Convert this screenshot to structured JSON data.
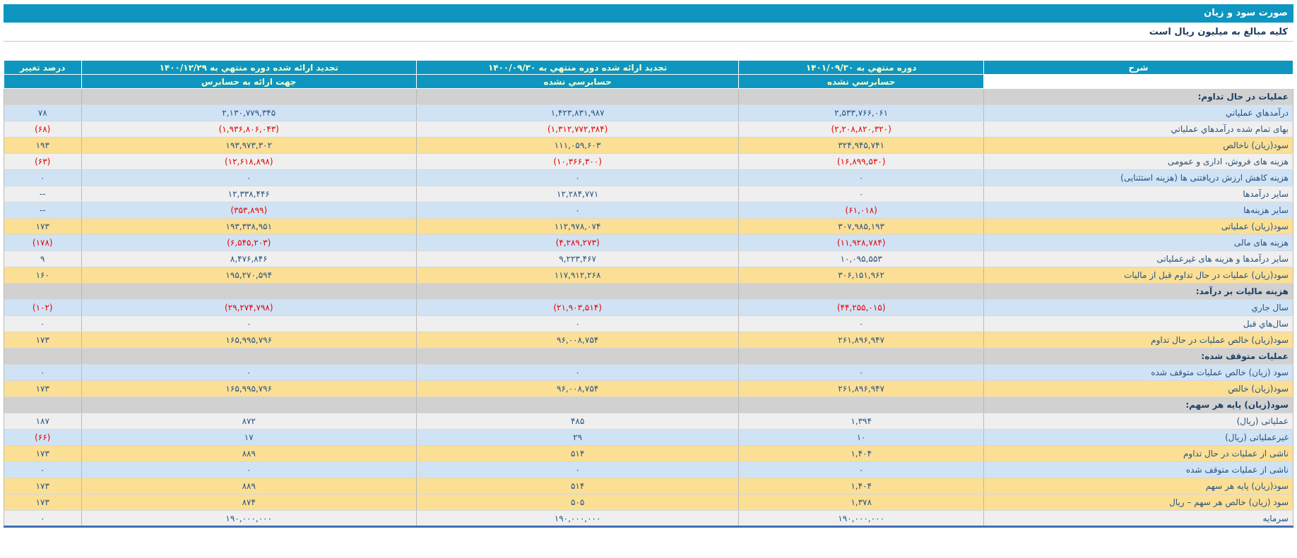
{
  "title_bar": {
    "text": "صورت سود و زیان"
  },
  "subtitle_bar": {
    "text": "کلیه مبالغ به میلیون ریال است"
  },
  "table": {
    "columns": {
      "description": "شرح",
      "col_1401": {
        "title": "دوره منتهي به ۱۴۰۱/۰۹/۳۰",
        "subtitle": "حسابرسي نشده"
      },
      "col_1400_09": {
        "title": "تجدید ارائه شده دوره منتهي به ۱۴۰۰/۰۹/۳۰",
        "subtitle": "حسابرسي نشده"
      },
      "col_1400_12": {
        "title": "تجدید ارائه شده دوره منتهي به ۱۴۰۰/۱۲/۲۹",
        "subtitle": "جهت ارائه به حسابرس"
      },
      "pct_change": "درصد تغییر"
    },
    "rows": [
      {
        "type": "section",
        "label": "عملیات در حال تداوم:"
      },
      {
        "type": "data",
        "tone": "blue",
        "label": "درآمدهاي عملیاتي",
        "v1401": "۲,۵۳۳,۷۶۶,۰۶۱",
        "v1400_09": "۱,۴۲۳,۸۳۱,۹۸۷",
        "v1400_12": "۲,۱۳۰,۷۷۹,۳۴۵",
        "pct": "۷۸"
      },
      {
        "type": "data",
        "tone": "light",
        "label": "بهای تمام شده درآمدهاي عملیاتي",
        "v1401": "(۲,۲۰۸,۸۲۰,۳۲۰)",
        "v1400_09": "(۱,۳۱۲,۷۷۲,۳۸۴)",
        "v1400_12": "(۱,۹۳۶,۸۰۶,۰۴۳)",
        "pct": "(۶۸)"
      },
      {
        "type": "data",
        "tone": "yellow",
        "label": "سود(زیان) ناخالص",
        "v1401": "۳۲۴,۹۴۵,۷۴۱",
        "v1400_09": "۱۱۱,۰۵۹,۶۰۳",
        "v1400_12": "۱۹۳,۹۷۳,۳۰۲",
        "pct": "۱۹۳"
      },
      {
        "type": "data",
        "tone": "light",
        "label": "هزینه های فروش، اداری و عمومی",
        "v1401": "(۱۶,۸۹۹,۵۳۰)",
        "v1400_09": "(۱۰,۳۶۶,۳۰۰)",
        "v1400_12": "(۱۲,۶۱۸,۸۹۸)",
        "pct": "(۶۳)"
      },
      {
        "type": "data",
        "tone": "blue",
        "label": "هزینه کاهش ارزش دریافتنی ها (هزینه استثنایی)",
        "v1401": "۰",
        "v1400_09": "۰",
        "v1400_12": "۰",
        "pct": "۰"
      },
      {
        "type": "data",
        "tone": "light",
        "label": "سایر درآمدها",
        "v1401": "۰",
        "v1400_09": "۱۲,۲۸۴,۷۷۱",
        "v1400_12": "۱۲,۳۳۸,۴۴۶",
        "pct": "--"
      },
      {
        "type": "data",
        "tone": "blue",
        "label": "سایر هزینه‌ها",
        "v1401": "(۶۱,۰۱۸)",
        "v1400_09": "۰",
        "v1400_12": "(۳۵۳,۸۹۹)",
        "pct": "--"
      },
      {
        "type": "data",
        "tone": "yellow",
        "label": "سود(زیان) عملیاتی",
        "v1401": "۳۰۷,۹۸۵,۱۹۳",
        "v1400_09": "۱۱۲,۹۷۸,۰۷۴",
        "v1400_12": "۱۹۳,۳۳۸,۹۵۱",
        "pct": "۱۷۳"
      },
      {
        "type": "data",
        "tone": "blue",
        "label": "هزینه های مالی",
        "v1401": "(۱۱,۹۲۸,۷۸۴)",
        "v1400_09": "(۴,۲۸۹,۲۷۳)",
        "v1400_12": "(۶,۵۴۵,۲۰۳)",
        "pct": "(۱۷۸)"
      },
      {
        "type": "data",
        "tone": "light",
        "label": "سایر درآمدها و هزینه های غیرعملیاتی",
        "v1401": "۱۰,۰۹۵,۵۵۳",
        "v1400_09": "۹,۲۲۳,۴۶۷",
        "v1400_12": "۸,۴۷۶,۸۴۶",
        "pct": "۹"
      },
      {
        "type": "data",
        "tone": "yellow",
        "label": "سود(زیان) عملیات در حال تداوم قبل از مالیات",
        "v1401": "۳۰۶,۱۵۱,۹۶۲",
        "v1400_09": "۱۱۷,۹۱۲,۲۶۸",
        "v1400_12": "۱۹۵,۲۷۰,۵۹۴",
        "pct": "۱۶۰"
      },
      {
        "type": "section",
        "label": "هزینه مالیات بر درآمد:"
      },
      {
        "type": "data",
        "tone": "blue",
        "label": "سال جاري",
        "v1401": "(۴۴,۲۵۵,۰۱۵)",
        "v1400_09": "(۲۱,۹۰۳,۵۱۴)",
        "v1400_12": "(۲۹,۲۷۴,۷۹۸)",
        "pct": "(۱۰۲)"
      },
      {
        "type": "data",
        "tone": "light",
        "label": "سال‌هاي قبل",
        "v1401": "۰",
        "v1400_09": "۰",
        "v1400_12": "۰",
        "pct": "۰"
      },
      {
        "type": "data",
        "tone": "yellow",
        "label": "سود(زیان) خالص عملیات در حال تداوم",
        "v1401": "۲۶۱,۸۹۶,۹۴۷",
        "v1400_09": "۹۶,۰۰۸,۷۵۴",
        "v1400_12": "۱۶۵,۹۹۵,۷۹۶",
        "pct": "۱۷۳"
      },
      {
        "type": "section",
        "label": "عملیات متوقف شده:"
      },
      {
        "type": "data",
        "tone": "blue",
        "label": "سود (زیان) خالص عملیات متوقف شده",
        "v1401": "۰",
        "v1400_09": "۰",
        "v1400_12": "۰",
        "pct": "۰"
      },
      {
        "type": "data",
        "tone": "yellow",
        "label": "سود(زیان) خالص",
        "v1401": "۲۶۱,۸۹۶,۹۴۷",
        "v1400_09": "۹۶,۰۰۸,۷۵۴",
        "v1400_12": "۱۶۵,۹۹۵,۷۹۶",
        "pct": "۱۷۳"
      },
      {
        "type": "section",
        "label": "سود(زیان) پایه هر سهم:"
      },
      {
        "type": "data",
        "tone": "light",
        "label": "عملیاتی (ریال)",
        "v1401": "۱,۳۹۴",
        "v1400_09": "۴۸۵",
        "v1400_12": "۸۷۲",
        "pct": "۱۸۷"
      },
      {
        "type": "data",
        "tone": "blue",
        "label": "غیرعملیاتی (ریال)",
        "v1401": "۱۰",
        "v1400_09": "۲۹",
        "v1400_12": "۱۷",
        "pct": "(۶۶)"
      },
      {
        "type": "data",
        "tone": "yellow",
        "label": "ناشی از عملیات در حال تداوم",
        "v1401": "۱,۴۰۴",
        "v1400_09": "۵۱۴",
        "v1400_12": "۸۸۹",
        "pct": "۱۷۳"
      },
      {
        "type": "data",
        "tone": "blue",
        "label": "ناشی از عملیات متوقف شده",
        "v1401": "۰",
        "v1400_09": "۰",
        "v1400_12": "۰",
        "pct": "۰"
      },
      {
        "type": "data",
        "tone": "yellow",
        "label": "سود(زیان) پایه هر سهم",
        "v1401": "۱,۴۰۴",
        "v1400_09": "۵۱۴",
        "v1400_12": "۸۸۹",
        "pct": "۱۷۳"
      },
      {
        "type": "data",
        "tone": "yellow",
        "label": "سود (زیان) خالص هر سهم – ریال",
        "v1401": "۱,۳۷۸",
        "v1400_09": "۵۰۵",
        "v1400_12": "۸۷۴",
        "pct": "۱۷۳"
      },
      {
        "type": "data",
        "tone": "light",
        "label": "سرمایه",
        "v1401": "۱۹۰,۰۰۰,۰۰۰",
        "v1400_09": "۱۹۰,۰۰۰,۰۰۰",
        "v1400_12": "۱۹۰,۰۰۰,۰۰۰",
        "pct": "۰"
      }
    ]
  },
  "colors": {
    "header_teal": "#0E96C0",
    "header_text": "#FFFFC8",
    "text_navy": "#2A527F",
    "negative_red": "#E80000",
    "row_blue": "#D0E3F5",
    "row_light": "#EFEFEF",
    "row_yellow": "#FBDF95",
    "row_section": "#D1D1D1",
    "bottom_border_blue": "#3F6FB5"
  }
}
